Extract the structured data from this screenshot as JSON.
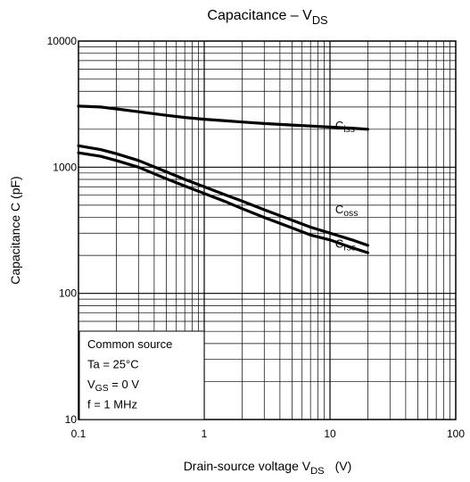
{
  "chart_data": {
    "type": "line",
    "title": "Capacitance – V",
    "title_sub": "DS",
    "xlabel": "Drain-source voltage   V",
    "xlabel_sub": "DS",
    "xlabel_unit": "(V)",
    "ylabel": "Capacitance   C   (pF)",
    "x_scale": "log",
    "y_scale": "log",
    "xlim": [
      0.1,
      100
    ],
    "ylim": [
      10,
      10000
    ],
    "grid": true,
    "x_ticks": [
      {
        "value": 0.1,
        "label": "0.1"
      },
      {
        "value": 1,
        "label": "1"
      },
      {
        "value": 10,
        "label": "10"
      },
      {
        "value": 100,
        "label": "100"
      }
    ],
    "y_ticks": [
      {
        "value": 10,
        "label": "10"
      },
      {
        "value": 100,
        "label": "100"
      },
      {
        "value": 1000,
        "label": "1000"
      },
      {
        "value": 10000,
        "label": "10000"
      }
    ],
    "series": [
      {
        "name": "C",
        "name_sub": "iss",
        "color": "#000000",
        "label_at": [
          11,
          2000
        ],
        "points": [
          [
            0.1,
            3050
          ],
          [
            0.15,
            3000
          ],
          [
            0.2,
            2900
          ],
          [
            0.3,
            2750
          ],
          [
            0.5,
            2580
          ],
          [
            0.7,
            2480
          ],
          [
            1,
            2400
          ],
          [
            1.5,
            2330
          ],
          [
            2,
            2280
          ],
          [
            3,
            2220
          ],
          [
            5,
            2160
          ],
          [
            7,
            2120
          ],
          [
            10,
            2080
          ],
          [
            15,
            2040
          ],
          [
            20,
            2000
          ]
        ]
      },
      {
        "name": "C",
        "name_sub": "oss",
        "color": "#000000",
        "label_at": [
          11,
          430
        ],
        "points": [
          [
            0.1,
            1480
          ],
          [
            0.15,
            1380
          ],
          [
            0.2,
            1280
          ],
          [
            0.3,
            1130
          ],
          [
            0.5,
            920
          ],
          [
            0.7,
            800
          ],
          [
            1,
            700
          ],
          [
            1.5,
            600
          ],
          [
            2,
            540
          ],
          [
            3,
            460
          ],
          [
            5,
            380
          ],
          [
            7,
            335
          ],
          [
            10,
            300
          ],
          [
            15,
            265
          ],
          [
            20,
            240
          ]
        ]
      },
      {
        "name": "C",
        "name_sub": "rss",
        "color": "#000000",
        "label_at": [
          11,
          230
        ],
        "points": [
          [
            0.1,
            1300
          ],
          [
            0.15,
            1220
          ],
          [
            0.2,
            1130
          ],
          [
            0.3,
            1000
          ],
          [
            0.5,
            810
          ],
          [
            0.7,
            710
          ],
          [
            1,
            620
          ],
          [
            1.5,
            530
          ],
          [
            2,
            470
          ],
          [
            3,
            400
          ],
          [
            5,
            330
          ],
          [
            7,
            290
          ],
          [
            10,
            265
          ],
          [
            15,
            230
          ],
          [
            20,
            210
          ]
        ]
      }
    ],
    "annotation": {
      "lines": [
        {
          "text": "Common source"
        },
        {
          "text": "Ta = 25°C"
        },
        {
          "text": "V",
          "sub": "GS",
          "tail": " = 0 V"
        },
        {
          "text": "f = 1 MHz"
        }
      ]
    }
  }
}
